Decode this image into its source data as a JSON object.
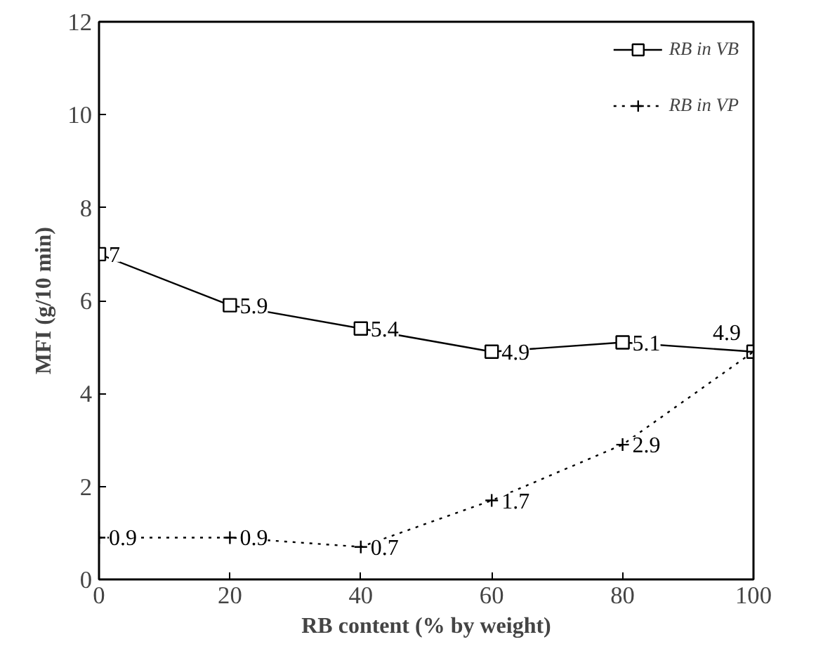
{
  "chart_data": {
    "type": "line",
    "xlabel": "RB content (% by weight)",
    "ylabel": "MFI (g/10 min)",
    "x": [
      0,
      20,
      40,
      60,
      80,
      100
    ],
    "series": [
      {
        "name": "RB in VB",
        "color": "#000000",
        "marker": "square",
        "line_style": "solid",
        "values": [
          7,
          5.9,
          5.4,
          4.9,
          5.1,
          4.9
        ],
        "value_labels": [
          "7",
          "5.9",
          "5.4",
          "4.9",
          "5.1",
          "4.9"
        ]
      },
      {
        "name": "RB in VP",
        "color": "#000000",
        "marker": "cross",
        "line_style": "dotted",
        "values": [
          0.9,
          0.9,
          0.7,
          1.7,
          2.9,
          4.9
        ],
        "value_labels": [
          "0.9",
          "0.9",
          "0.7",
          "1.7",
          "2.9",
          null
        ]
      }
    ],
    "xlim": [
      0,
      100
    ],
    "xticks": [
      0,
      20,
      40,
      60,
      80,
      100
    ],
    "ylim": [
      0,
      12
    ],
    "yticks": [
      0,
      2,
      4,
      6,
      8,
      10,
      12
    ],
    "grid": false,
    "legend": "top right"
  }
}
